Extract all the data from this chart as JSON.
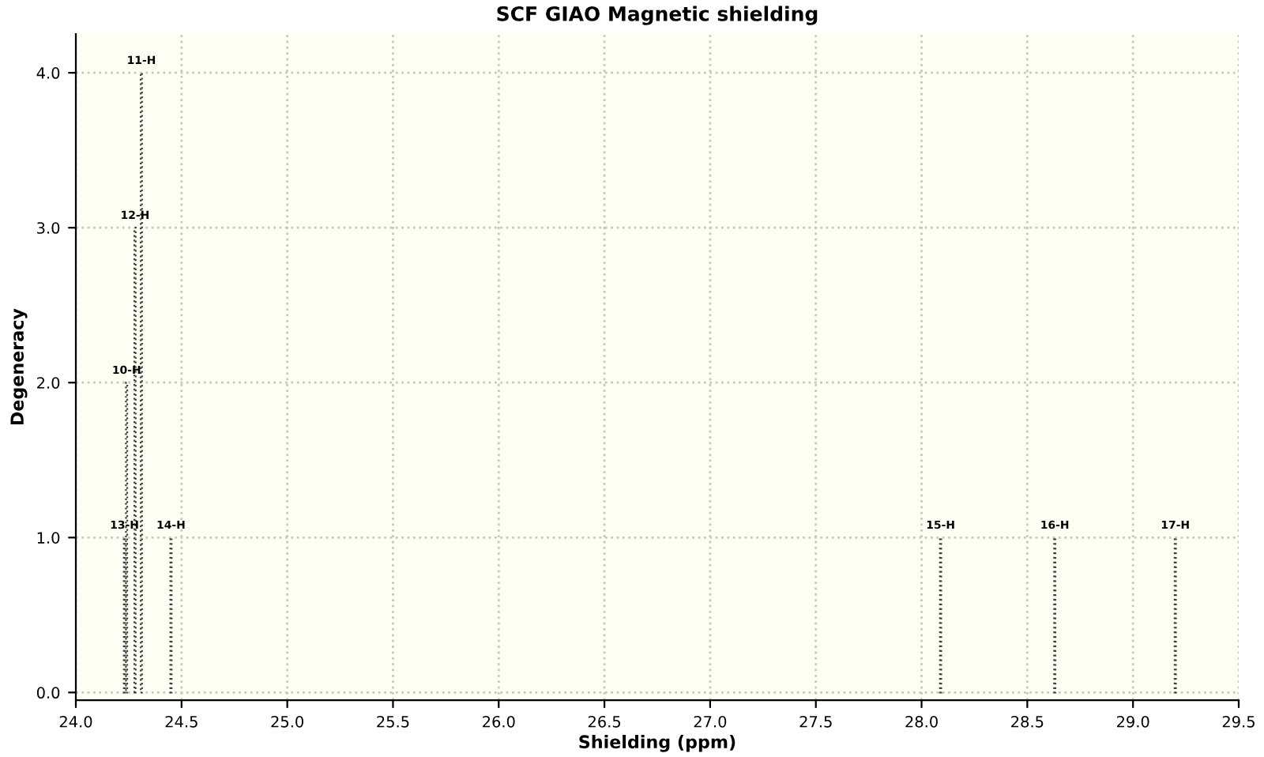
{
  "chart_data": {
    "type": "bar",
    "title": "SCF GIAO Magnetic shielding",
    "xlabel": "Shielding (ppm)",
    "ylabel": "Degeneracy",
    "x": [
      24.23,
      24.24,
      24.28,
      24.31,
      24.45,
      28.09,
      28.63,
      29.2
    ],
    "values": [
      1,
      2,
      3,
      4,
      1,
      1,
      1,
      1
    ],
    "color": "#404040",
    "line_style": "dotted",
    "annotations": [
      {
        "text": "13-H",
        "x": 24.23,
        "y": 1
      },
      {
        "text": "10-H",
        "x": 24.24,
        "y": 2
      },
      {
        "text": "12-H",
        "x": 24.28,
        "y": 3
      },
      {
        "text": "11-H",
        "x": 24.31,
        "y": 4
      },
      {
        "text": "14-H",
        "x": 24.45,
        "y": 1
      },
      {
        "text": "15-H",
        "x": 28.09,
        "y": 1
      },
      {
        "text": "16-H",
        "x": 28.63,
        "y": 1
      },
      {
        "text": "17-H",
        "x": 29.2,
        "y": 1
      }
    ],
    "xlim": [
      24.0,
      29.5
    ],
    "xticks": [
      {
        "value": 24.0,
        "label": "24.0"
      },
      {
        "value": 24.5,
        "label": "24.5"
      },
      {
        "value": 25.0,
        "label": "25.0"
      },
      {
        "value": 25.5,
        "label": "25.5"
      },
      {
        "value": 26.0,
        "label": "26.0"
      },
      {
        "value": 26.5,
        "label": "26.5"
      },
      {
        "value": 27.0,
        "label": "27.0"
      },
      {
        "value": 27.5,
        "label": "27.5"
      },
      {
        "value": 28.0,
        "label": "28.0"
      },
      {
        "value": 28.5,
        "label": "28.5"
      },
      {
        "value": 29.0,
        "label": "29.0"
      },
      {
        "value": 29.5,
        "label": "29.5"
      }
    ],
    "ylim": [
      -0.05,
      4.25
    ],
    "yticks": [
      {
        "value": 0,
        "label": "0.0"
      },
      {
        "value": 1,
        "label": "1.0"
      },
      {
        "value": 2,
        "label": "2.0"
      },
      {
        "value": 3,
        "label": "3.0"
      },
      {
        "value": 4,
        "label": "4.0"
      }
    ],
    "grid": true
  }
}
